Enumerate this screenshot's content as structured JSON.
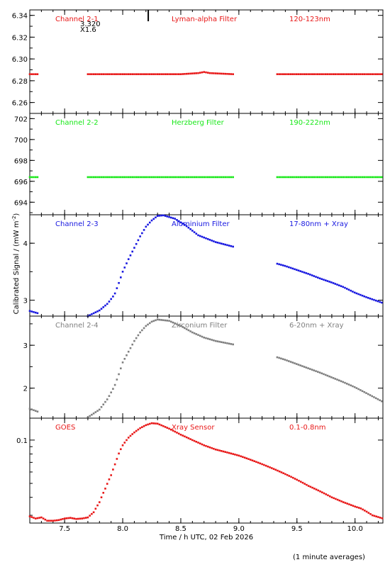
{
  "figure": {
    "xlabel": "Time / h UTC, 02 Feb 2026",
    "ylabel": "Calibrated Signal / (mW m",
    "ylabel_sup": "-2",
    "ylabel_end": ")",
    "footnote": "(1 minute averages)",
    "annotation_top": [
      "3.320",
      "X1.6"
    ]
  },
  "chart_data": [
    {
      "type": "scatter",
      "label_left": "Channel 2-1",
      "label_mid": "Lyman-alpha Filter",
      "label_right": "120-123nm",
      "color": "#e81818",
      "xlim": [
        7.2,
        10.24
      ],
      "ylim": [
        6.25,
        6.345
      ],
      "yticks": [
        6.26,
        6.28,
        6.3,
        6.32,
        6.34
      ],
      "ytick_labels": [
        "6.26",
        "6.28",
        "6.30",
        "6.32",
        "6.34"
      ],
      "segments": [
        {
          "x": [
            7.2,
            7.27
          ],
          "y": [
            6.286,
            6.286
          ]
        },
        {
          "x": [
            7.7,
            8.1,
            8.5,
            8.65,
            8.7,
            8.75,
            8.95
          ],
          "y": [
            6.286,
            6.286,
            6.286,
            6.287,
            6.288,
            6.287,
            6.286
          ]
        },
        {
          "x": [
            9.33,
            10.24
          ],
          "y": [
            6.286,
            6.286
          ]
        }
      ],
      "flare_marker_x": 8.22
    },
    {
      "type": "scatter",
      "label_left": "Channel 2-2",
      "label_mid": "Herzberg Filter",
      "label_right": "190-222nm",
      "color": "#18e818",
      "xlim": [
        7.2,
        10.24
      ],
      "ylim": [
        692.8,
        702.5
      ],
      "yticks": [
        694,
        696,
        698,
        700,
        702
      ],
      "ytick_labels": [
        "694",
        "696",
        "698",
        "700",
        "702"
      ],
      "segments": [
        {
          "x": [
            7.2,
            7.27
          ],
          "y": [
            696.4,
            696.4
          ]
        },
        {
          "x": [
            7.7,
            8.95
          ],
          "y": [
            696.4,
            696.4
          ]
        },
        {
          "x": [
            9.33,
            10.24
          ],
          "y": [
            696.4,
            696.4
          ]
        }
      ]
    },
    {
      "type": "scatter",
      "label_left": "Channel 2-3",
      "label_mid": "Aluminium Filter",
      "label_right": "17-80nm + Xray",
      "color": "#1818e0",
      "xlim": [
        7.2,
        10.24
      ],
      "ylim": [
        2.72,
        4.5
      ],
      "yticks": [
        3,
        4
      ],
      "ytick_labels": [
        "3",
        "4"
      ],
      "segments": [
        {
          "x": [
            7.2,
            7.27
          ],
          "y": [
            2.81,
            2.77
          ]
        },
        {
          "x": [
            7.7,
            7.8,
            7.87,
            7.93,
            7.97,
            8.0,
            8.05,
            8.1,
            8.15,
            8.2,
            8.25,
            8.3,
            8.35,
            8.45,
            8.55,
            8.65,
            8.8,
            8.95
          ],
          "y": [
            2.72,
            2.82,
            2.94,
            3.1,
            3.32,
            3.5,
            3.72,
            3.92,
            4.12,
            4.29,
            4.4,
            4.48,
            4.49,
            4.43,
            4.3,
            4.14,
            4.02,
            3.94
          ]
        },
        {
          "x": [
            9.33,
            9.4,
            9.5,
            9.6,
            9.7,
            9.8,
            9.9,
            10.0,
            10.1,
            10.24
          ],
          "y": [
            3.64,
            3.6,
            3.53,
            3.46,
            3.38,
            3.31,
            3.23,
            3.13,
            3.05,
            2.95
          ]
        }
      ]
    },
    {
      "type": "scatter",
      "label_left": "Channel 2-4",
      "label_mid": "Zirconium Filter",
      "label_right": "6-20nm + Xray",
      "color": "#808080",
      "xlim": [
        7.2,
        10.24
      ],
      "ylim": [
        1.3,
        3.68
      ],
      "yticks": [
        2,
        3
      ],
      "ytick_labels": [
        "2",
        "3"
      ],
      "segments": [
        {
          "x": [
            7.2,
            7.27
          ],
          "y": [
            1.52,
            1.45
          ]
        },
        {
          "x": [
            7.7,
            7.8,
            7.87,
            7.93,
            7.97,
            8.0,
            8.05,
            8.1,
            8.15,
            8.2,
            8.25,
            8.3,
            8.4,
            8.5,
            8.6,
            8.7,
            8.8,
            8.95
          ],
          "y": [
            1.32,
            1.5,
            1.75,
            2.05,
            2.35,
            2.6,
            2.85,
            3.1,
            3.3,
            3.45,
            3.55,
            3.6,
            3.57,
            3.45,
            3.3,
            3.18,
            3.1,
            3.02
          ]
        },
        {
          "x": [
            9.33,
            9.4,
            9.5,
            9.6,
            9.7,
            9.8,
            9.9,
            10.0,
            10.1,
            10.24
          ],
          "y": [
            2.72,
            2.66,
            2.56,
            2.46,
            2.36,
            2.25,
            2.14,
            2.02,
            1.88,
            1.68
          ]
        }
      ]
    },
    {
      "type": "scatter",
      "label_left": "GOES",
      "label_mid": "Xray Sensor",
      "label_right": "0.1-0.8nm",
      "color": "#e81818",
      "xlim": [
        7.2,
        10.24
      ],
      "ylim": [
        0.0265,
        0.142
      ],
      "ylog": true,
      "yticks": [
        0.1
      ],
      "ytick_labels": [
        "0.1"
      ],
      "segments": [
        {
          "x": [
            7.2,
            7.25,
            7.3,
            7.35,
            7.4,
            7.45,
            7.5,
            7.55,
            7.6,
            7.65,
            7.7,
            7.75,
            7.8,
            7.85,
            7.9,
            7.94,
            7.97,
            8.0,
            8.05,
            8.1,
            8.15,
            8.2,
            8.25,
            8.3,
            8.4,
            8.5,
            8.6,
            8.7,
            8.8,
            8.9,
            9.0,
            9.1,
            9.2,
            9.3,
            9.4,
            9.5,
            9.6,
            9.7,
            9.8,
            9.9,
            10.0,
            10.05,
            10.1,
            10.15,
            10.24
          ],
          "y": [
            0.0295,
            0.0285,
            0.029,
            0.0275,
            0.0275,
            0.0278,
            0.0285,
            0.0288,
            0.0283,
            0.0285,
            0.029,
            0.0315,
            0.037,
            0.046,
            0.057,
            0.07,
            0.082,
            0.092,
            0.104,
            0.113,
            0.121,
            0.127,
            0.131,
            0.13,
            0.12,
            0.109,
            0.1,
            0.092,
            0.086,
            0.082,
            0.078,
            0.073,
            0.068,
            0.063,
            0.058,
            0.053,
            0.048,
            0.044,
            0.04,
            0.037,
            0.0345,
            0.0335,
            0.0318,
            0.03,
            0.0285
          ]
        }
      ]
    }
  ],
  "xaxis": {
    "ticks": [
      7.5,
      8.0,
      8.5,
      9.0,
      9.5,
      10.0
    ],
    "tick_labels": [
      "7.5",
      "8.0",
      "8.5",
      "9.0",
      "9.5",
      "10.0"
    ]
  }
}
